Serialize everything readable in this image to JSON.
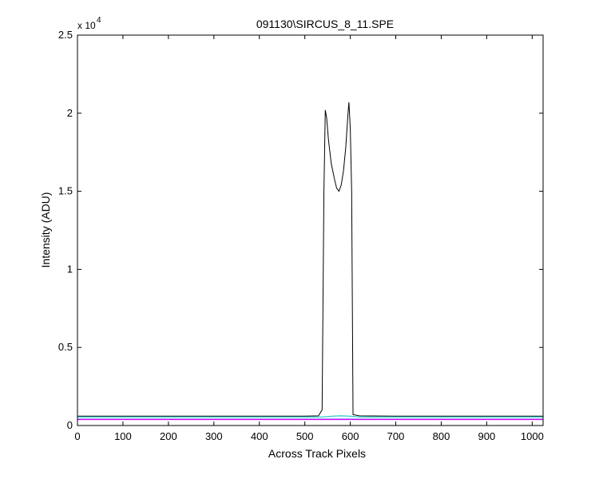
{
  "chart_data": {
    "type": "line",
    "title": "091130\\SIRCUS_8_11.SPE",
    "xlabel": "Across Track Pixels",
    "ylabel": "Intensity (ADU)",
    "y_exponent_label": "x 10",
    "y_exponent_power": "4",
    "xlim": [
      0,
      1024
    ],
    "ylim": [
      0,
      25000
    ],
    "xticks": [
      0,
      100,
      200,
      300,
      400,
      500,
      600,
      700,
      800,
      900,
      1000
    ],
    "xtick_labels": [
      "0",
      "100",
      "200",
      "300",
      "400",
      "500",
      "600",
      "700",
      "800",
      "900",
      "1000"
    ],
    "yticks": [
      0,
      5000,
      10000,
      15000,
      20000,
      25000
    ],
    "ytick_labels": [
      "0",
      "0.5",
      "1",
      "1.5",
      "2",
      "2.5"
    ],
    "grid": false,
    "legend": "none",
    "series": [
      {
        "color": "#000000",
        "x": [
          0,
          100,
          200,
          300,
          400,
          500,
          530,
          538,
          542,
          545,
          548,
          552,
          558,
          565,
          570,
          575,
          580,
          585,
          590,
          595,
          597,
          600,
          603,
          606,
          620,
          700,
          800,
          900,
          1024
        ],
        "y": [
          600,
          600,
          600,
          600,
          600,
          600,
          620,
          1000,
          15000,
          20200,
          19700,
          18300,
          16800,
          15800,
          15200,
          15000,
          15400,
          16300,
          17800,
          20000,
          20700,
          19000,
          15000,
          700,
          620,
          600,
          600,
          600,
          600
        ]
      },
      {
        "color": "#00bfbf",
        "x": [
          0,
          200,
          400,
          540,
          560,
          580,
          600,
          620,
          800,
          1024
        ],
        "y": [
          550,
          550,
          550,
          550,
          600,
          620,
          600,
          550,
          550,
          550
        ]
      },
      {
        "color": "#0000ff",
        "x": [
          0,
          200,
          400,
          600,
          800,
          1024
        ],
        "y": [
          400,
          400,
          400,
          400,
          400,
          400
        ]
      },
      {
        "color": "#ff00ff",
        "x": [
          0,
          200,
          400,
          600,
          800,
          1024
        ],
        "y": [
          380,
          380,
          380,
          380,
          380,
          380
        ]
      }
    ]
  }
}
